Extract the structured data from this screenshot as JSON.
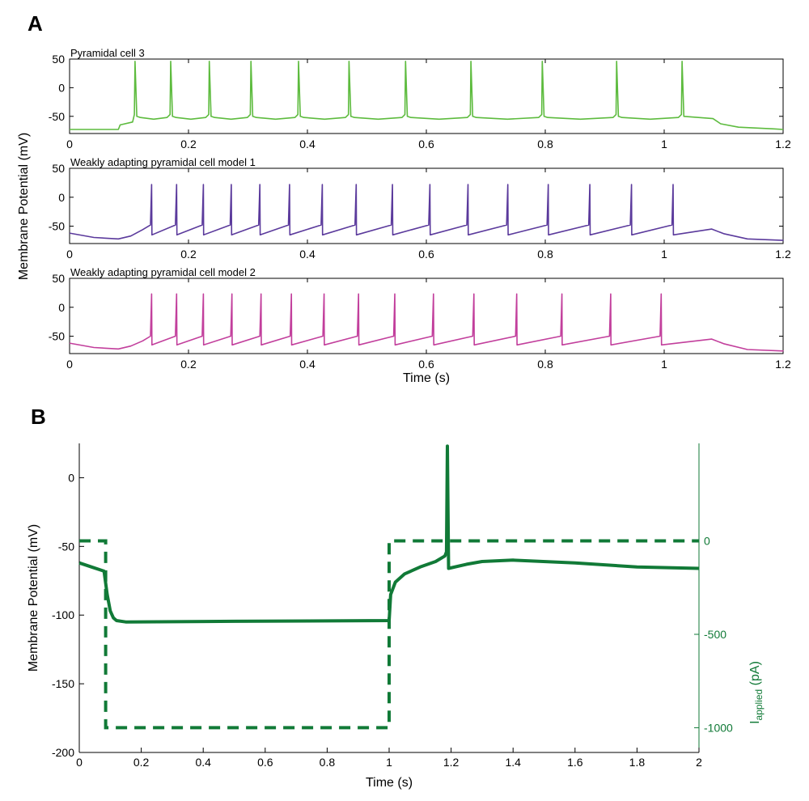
{
  "panel_labels": {
    "a": "A",
    "b": "B"
  },
  "colors": {
    "cell3": "#5dbb3e",
    "model1": "#5b3a9c",
    "model2": "#c23f9c",
    "panel_b": "#117a37",
    "axis": "#000000"
  },
  "panel_a": {
    "ylabel": "Membrane Potential (mV)",
    "xlabel": "Time (s)",
    "subplots": [
      {
        "title": "Pyramidal cell 3"
      },
      {
        "title": "Weakly adapting pyramidal cell model 1"
      },
      {
        "title": "Weakly adapting pyramidal cell model 2"
      }
    ]
  },
  "panel_b": {
    "ylabel_left": "Membrane Potential (mV)",
    "ylabel_right_main": "I",
    "ylabel_right_sub": "applied",
    "ylabel_right_unit": " (pA)",
    "xlabel": "Time (s)"
  },
  "chart_data": [
    {
      "type": "line",
      "title": "Pyramidal cell 3",
      "xlabel": "Time (s)",
      "ylabel": "Membrane Potential (mV)",
      "xlim": [
        0,
        1.2
      ],
      "ylim": [
        -80,
        50
      ],
      "xticks": [
        0,
        0.2,
        0.4,
        0.6,
        0.8,
        1,
        1.2
      ],
      "yticks": [
        50,
        0,
        -50
      ],
      "series": [
        {
          "color": "#5dbb3e",
          "rest": -73,
          "stim_on": 0.082,
          "stim_off": 1.085,
          "plateau_start": -65,
          "plateau": -52,
          "trough": -55,
          "peak": 46,
          "spikes": [
            0.11,
            0.17,
            0.235,
            0.305,
            0.385,
            0.47,
            0.565,
            0.675,
            0.795,
            0.92,
            1.03
          ]
        }
      ]
    },
    {
      "type": "line",
      "title": "Weakly adapting pyramidal cell model 1",
      "xlabel": "Time (s)",
      "ylabel": "Membrane Potential (mV)",
      "xlim": [
        0,
        1.2
      ],
      "ylim": [
        -80,
        50
      ],
      "xticks": [
        0,
        0.2,
        0.4,
        0.6,
        0.8,
        1,
        1.2
      ],
      "yticks": [
        50,
        0,
        -50
      ],
      "series": [
        {
          "color": "#5b3a9c",
          "rest_start": -62,
          "rest": -72,
          "rest_end": -75,
          "stim_on": 0.082,
          "stim_off": 1.08,
          "trough": -65,
          "prespike": -48,
          "peak": 22,
          "spikes": [
            0.138,
            0.18,
            0.225,
            0.272,
            0.32,
            0.37,
            0.425,
            0.482,
            0.543,
            0.606,
            0.67,
            0.737,
            0.805,
            0.875,
            0.945,
            1.015
          ]
        }
      ]
    },
    {
      "type": "line",
      "title": "Weakly adapting pyramidal cell model 2",
      "xlabel": "Time (s)",
      "ylabel": "Membrane Potential (mV)",
      "xlim": [
        0,
        1.2
      ],
      "ylim": [
        -80,
        50
      ],
      "xticks": [
        0,
        0.2,
        0.4,
        0.6,
        0.8,
        1,
        1.2
      ],
      "yticks": [
        50,
        0,
        -50
      ],
      "series": [
        {
          "color": "#c23f9c",
          "rest_start": -62,
          "rest": -72,
          "rest_end": -76,
          "stim_on": 0.082,
          "stim_off": 1.08,
          "trough": -65,
          "prespike": -50,
          "peak": 23,
          "spikes": [
            0.138,
            0.18,
            0.225,
            0.273,
            0.322,
            0.373,
            0.428,
            0.486,
            0.547,
            0.612,
            0.68,
            0.752,
            0.828,
            0.91,
            0.995
          ]
        }
      ]
    },
    {
      "type": "line",
      "xlabel": "Time (s)",
      "ylabel": "Membrane Potential (mV)",
      "ylabel_right": "Iapplied (pA)",
      "xlim": [
        0,
        2
      ],
      "ylim": [
        -200,
        25
      ],
      "ylim_right": [
        -1250,
        0
      ],
      "xticks": [
        0,
        0.2,
        0.4,
        0.6,
        0.8,
        1,
        1.2,
        1.4,
        1.6,
        1.8,
        2
      ],
      "yticks": [
        0,
        -50,
        -100,
        -150,
        -200
      ],
      "yticks_right": [
        0,
        -500,
        -1000
      ],
      "series": [
        {
          "name": "Membrane potential",
          "color": "#117a37",
          "style": "solid",
          "points": [
            [
              0,
              -62
            ],
            [
              0.04,
              -65
            ],
            [
              0.08,
              -68
            ],
            [
              0.09,
              -85
            ],
            [
              0.1,
              -97
            ],
            [
              0.11,
              -102
            ],
            [
              0.12,
              -104
            ],
            [
              0.15,
              -105
            ],
            [
              0.5,
              -104.5
            ],
            [
              1.0,
              -104
            ],
            [
              1.005,
              -85
            ],
            [
              1.02,
              -76
            ],
            [
              1.05,
              -70
            ],
            [
              1.1,
              -65
            ],
            [
              1.15,
              -61
            ],
            [
              1.18,
              -57
            ],
            [
              1.185,
              -54
            ],
            [
              1.188,
              23
            ],
            [
              1.192,
              -66
            ],
            [
              1.25,
              -63
            ],
            [
              1.3,
              -61
            ],
            [
              1.4,
              -60
            ],
            [
              1.6,
              -62
            ],
            [
              1.8,
              -65
            ],
            [
              2.0,
              -66
            ]
          ]
        },
        {
          "name": "Current",
          "color": "#117a37",
          "style": "dashed",
          "axis": "right",
          "points": [
            [
              0,
              0
            ],
            [
              0.085,
              0
            ],
            [
              0.085,
              -1000
            ],
            [
              1.0,
              -1000
            ],
            [
              1.0,
              0
            ],
            [
              2.0,
              0
            ]
          ]
        }
      ]
    }
  ]
}
